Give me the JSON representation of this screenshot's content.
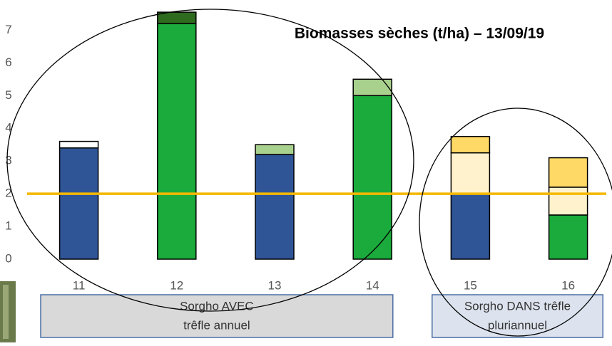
{
  "chart_data": {
    "type": "stacked_bar",
    "title": "Biomasses sèches (t/ha) – 13/09/19",
    "categories": [
      "11",
      "12",
      "13",
      "14",
      "15",
      "16"
    ],
    "series": [
      {
        "color": "#2f5597",
        "values": [
          3.4,
          null,
          3.2,
          null,
          2.0,
          null
        ]
      },
      {
        "color": "#1aab3c",
        "values": [
          null,
          7.2,
          null,
          5.0,
          null,
          1.35
        ]
      },
      {
        "color": "#ffffff",
        "values": [
          0.2,
          null,
          null,
          null,
          null,
          null
        ]
      },
      {
        "color": "#2e6b1f",
        "values": [
          null,
          0.35,
          null,
          null,
          null,
          null
        ]
      },
      {
        "color": "#a9d18e",
        "values": [
          null,
          null,
          0.3,
          0.5,
          null,
          null
        ]
      },
      {
        "color": "#fff2cc",
        "values": [
          null,
          null,
          null,
          null,
          1.25,
          0.85
        ]
      },
      {
        "color": "#ffd966",
        "values": [
          null,
          null,
          null,
          null,
          0.5,
          0.9
        ]
      }
    ],
    "ylim": [
      0,
      7.4
    ],
    "yticks": [
      0,
      1,
      2,
      3,
      4,
      5,
      6,
      7
    ],
    "reference_line": {
      "value": 2,
      "color": "#f5b800"
    },
    "groups": [
      {
        "lines": [
          "Sorgho AVEC",
          "trêfle annuel"
        ],
        "from": 0,
        "to": 3
      },
      {
        "lines": [
          "Sorgho DANS trêfle",
          "pluriannuel"
        ],
        "from": 4,
        "to": 5
      }
    ]
  }
}
